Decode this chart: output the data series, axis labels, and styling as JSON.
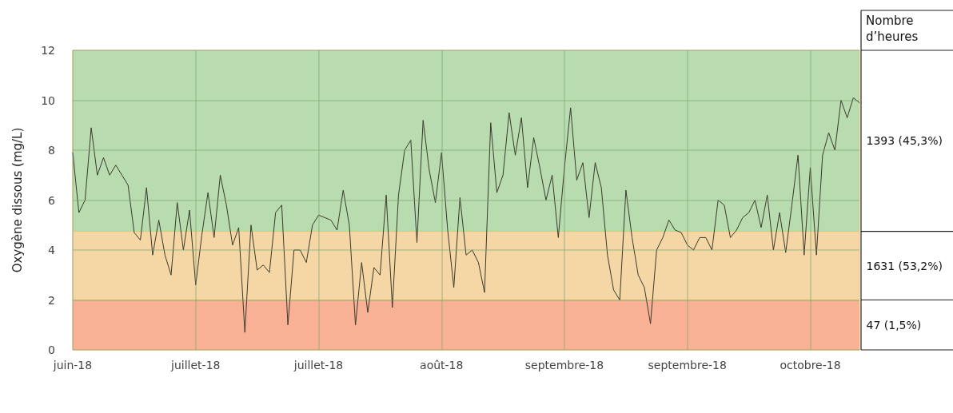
{
  "chart_data": {
    "type": "line",
    "ylabel": "Oxygène dissous (mg/L)",
    "categories": [
      "juin-18",
      null,
      null,
      null,
      null,
      null,
      null,
      null,
      null,
      null,
      null,
      null,
      null,
      null,
      null,
      null,
      null,
      null,
      null,
      null,
      "juillet-18",
      null,
      null,
      null,
      null,
      null,
      null,
      null,
      null,
      null,
      null,
      null,
      null,
      null,
      null,
      null,
      null,
      null,
      null,
      null,
      "juillet-18",
      null,
      null,
      null,
      null,
      null,
      null,
      null,
      null,
      null,
      null,
      null,
      null,
      null,
      null,
      null,
      null,
      null,
      null,
      null,
      "août-18",
      null,
      null,
      null,
      null,
      null,
      null,
      null,
      null,
      null,
      null,
      null,
      null,
      null,
      null,
      null,
      null,
      null,
      null,
      null,
      "septembre-18",
      null,
      null,
      null,
      null,
      null,
      null,
      null,
      null,
      null,
      null,
      null,
      null,
      null,
      null,
      null,
      null,
      null,
      null,
      null,
      "septembre-18",
      null,
      null,
      null,
      null,
      null,
      null,
      null,
      null,
      null,
      null,
      null,
      null,
      null,
      null,
      null,
      null,
      null,
      null,
      null,
      "octobre-18",
      null,
      null,
      null,
      null,
      null,
      null,
      null,
      null
    ],
    "series": [
      {
        "color": "#3a3a2c",
        "values": [
          7.9,
          5.5,
          6.0,
          8.9,
          7.0,
          7.7,
          7.0,
          7.4,
          7.0,
          6.6,
          4.7,
          4.4,
          6.5,
          3.8,
          5.2,
          3.8,
          3.0,
          5.9,
          4.0,
          5.6,
          2.6,
          4.6,
          6.3,
          4.5,
          7.0,
          5.8,
          4.2,
          4.9,
          0.7,
          5.0,
          3.2,
          3.4,
          3.1,
          5.5,
          5.8,
          1.0,
          4.0,
          4.0,
          3.5,
          5.0,
          5.4,
          5.3,
          5.2,
          4.8,
          6.4,
          5.0,
          1.0,
          3.5,
          1.5,
          3.3,
          3.0,
          6.2,
          1.7,
          6.2,
          8.0,
          8.4,
          4.3,
          9.2,
          7.2,
          5.9,
          7.9,
          4.8,
          2.5,
          6.1,
          3.8,
          4.0,
          3.5,
          2.3,
          9.1,
          6.3,
          7.0,
          9.5,
          7.8,
          9.3,
          6.5,
          8.5,
          7.3,
          6.0,
          7.0,
          4.5,
          7.3,
          9.7,
          6.8,
          7.5,
          5.3,
          7.5,
          6.5,
          3.8,
          2.4,
          2.0,
          6.4,
          4.5,
          3.0,
          2.5,
          1.05,
          4.0,
          4.5,
          5.2,
          4.8,
          4.7,
          4.2,
          4.0,
          4.5,
          4.5,
          4.0,
          6.0,
          5.8,
          4.5,
          4.8,
          5.3,
          5.5,
          6.0,
          4.9,
          6.2,
          4.0,
          5.5,
          3.9,
          5.8,
          7.8,
          3.8,
          7.3,
          3.8,
          7.8,
          8.7,
          8.0,
          10.0,
          9.3,
          10.1,
          9.9
        ]
      }
    ],
    "ylim": [
      0,
      12
    ],
    "yticks": [
      0,
      2,
      4,
      6,
      8,
      10,
      12
    ],
    "grid": true,
    "marker": "none",
    "line_style": "solid",
    "bands": [
      {
        "axis": "y",
        "from": 4.75,
        "to": 12,
        "label": "1393 (45,3%)",
        "color": "#b8dbb0"
      },
      {
        "axis": "y",
        "from": 2,
        "to": 4.75,
        "label": "1631 (53,2%)",
        "color": "#f5d7a5"
      },
      {
        "axis": "y",
        "from": 0,
        "to": 2,
        "label": "47 (1,5%)",
        "color": "#f8b195"
      }
    ],
    "annotations": [
      "Nombre d’heures"
    ]
  }
}
